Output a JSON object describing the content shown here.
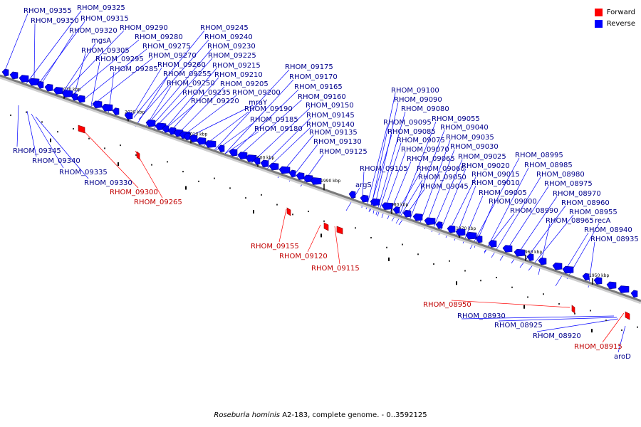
{
  "legend": {
    "forward_label": "Forward",
    "reverse_label": "Reverse",
    "forward_color": "#ff0000",
    "reverse_color": "#0000ff"
  },
  "caption": {
    "organism": "Roseburia hominis",
    "rest": "A2-183, complete genome. - 0..3592125"
  },
  "scale_ticks": [
    "2030 kbp",
    "2020 kbp",
    "2010 kbp",
    "2000 kbp",
    "1990 kbp",
    "1980 kbp",
    "1970 kbp",
    "1960 kbp",
    "1950 kbp"
  ],
  "reverse_labels": [
    "RHOM_09355",
    "RHOM_09325",
    "RHOM_09350",
    "RHOM_09315",
    "RHOM_09320",
    "mgsA",
    "RHOM_09290",
    "RHOM_09280",
    "RHOM_09305",
    "RHOM_09275",
    "RHOM_09295",
    "RHOM_09270",
    "RHOM_09285",
    "RHOM_09245",
    "RHOM_09240",
    "RHOM_09230",
    "RHOM_09225",
    "RHOM_09260",
    "RHOM_09215",
    "RHOM_09255",
    "RHOM_09210",
    "RHOM_09250",
    "RHOM_09205",
    "RHOM_09235",
    "RHOM_09200",
    "RHOM_09220",
    "mraY",
    "RHOM_09175",
    "RHOM_09170",
    "RHOM_09165",
    "RHOM_09160",
    "RHOM_09190",
    "RHOM_09150",
    "RHOM_09185",
    "RHOM_09145",
    "RHOM_09180",
    "RHOM_09140",
    "RHOM_09135",
    "RHOM_09130",
    "RHOM_09125",
    "RHOM_09100",
    "RHOM_09090",
    "RHOM_09080",
    "RHOM_09095",
    "RHOM_09055",
    "RHOM_09085",
    "RHOM_09040",
    "RHOM_09075",
    "RHOM_09035",
    "RHOM_09070",
    "RHOM_09030",
    "RHOM_09065",
    "RHOM_09025",
    "RHOM_08995",
    "RHOM_09105",
    "RHOM_09020",
    "RHOM_09060",
    "RHOM_08985",
    "RHOM_09015",
    "RHOM_09050",
    "RHOM_08980",
    "RHOM_09010",
    "RHOM_09045",
    "argS",
    "RHOM_08975",
    "RHOM_09005",
    "RHOM_08970",
    "RHOM_09000",
    "RHOM_08960",
    "RHOM_08990",
    "RHOM_08955",
    "RHOM_08965",
    "recA",
    "RHOM_08940",
    "RHOM_08935",
    "RHOM_09345",
    "RHOM_09340",
    "RHOM_09335",
    "RHOM_09330",
    "RHOM_08930",
    "RHOM_08925",
    "RHOM_08920",
    "aroD"
  ],
  "forward_labels": [
    "RHOM_09300",
    "RHOM_09265",
    "RHOM_09155",
    "RHOM_09120",
    "RHOM_09115",
    "RHOM_08950",
    "RHOM_08915"
  ]
}
